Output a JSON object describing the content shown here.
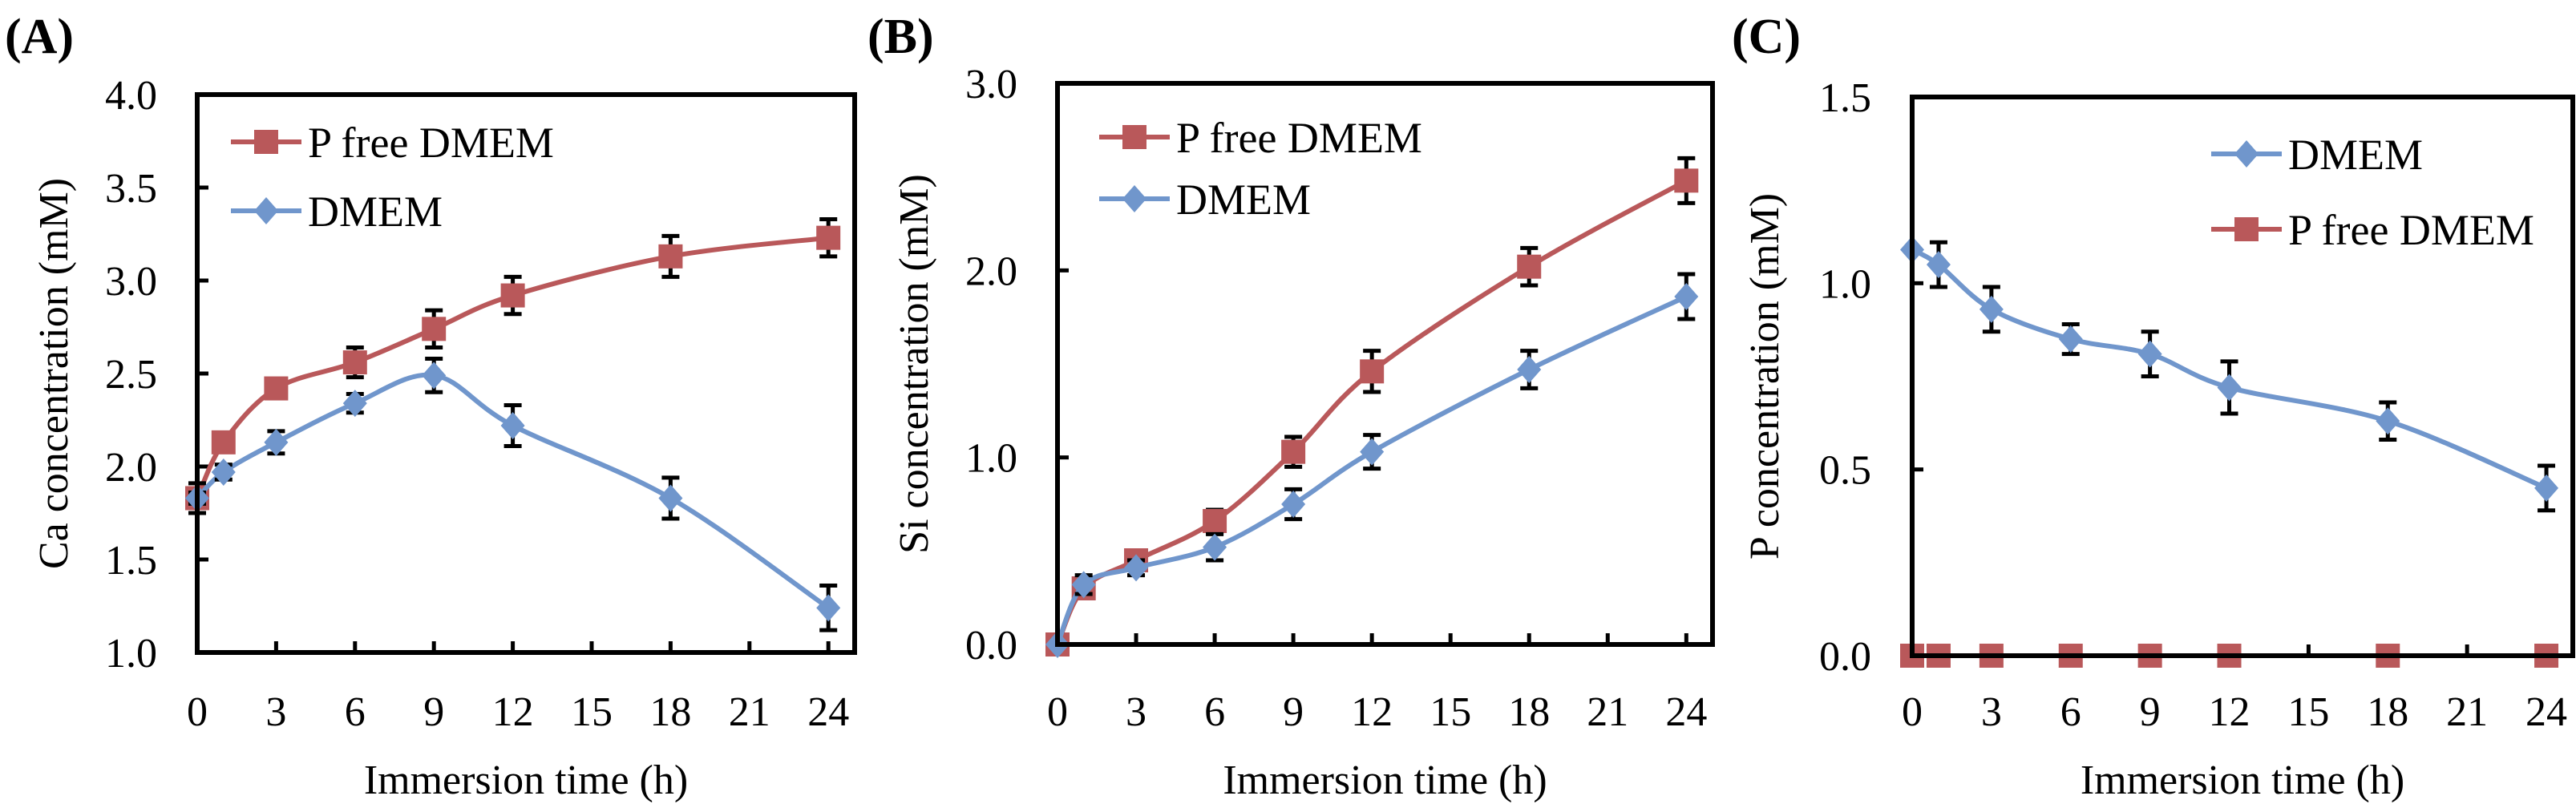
{
  "colors": {
    "p_free": "#b9585a",
    "dmem": "#7096cc",
    "axis": "#000000",
    "error": "#000000"
  },
  "chart_data": [
    {
      "type": "line",
      "panel": "(A)",
      "xlabel": "Immersion time (h)",
      "ylabel": "Ca concentration (mM)",
      "xlim": [
        0,
        25
      ],
      "ylim": [
        1.0,
        4.0
      ],
      "xticks": [
        0,
        3,
        6,
        9,
        12,
        15,
        18,
        21,
        24
      ],
      "yticks": [
        "1.0",
        "1.5",
        "2.0",
        "2.5",
        "3.0",
        "3.5",
        "4.0"
      ],
      "legend_order": [
        "P free DMEM",
        "DMEM"
      ],
      "x": [
        0,
        1,
        3,
        6,
        9,
        12,
        18,
        24
      ],
      "series": [
        {
          "name": "P free DMEM",
          "key": "p_free",
          "marker": "square",
          "values": [
            1.83,
            2.13,
            2.42,
            2.56,
            2.74,
            2.92,
            3.13,
            3.23
          ],
          "errors": [
            0.08,
            0.05,
            0.05,
            0.08,
            0.1,
            0.1,
            0.11,
            0.1
          ]
        },
        {
          "name": "DMEM",
          "key": "dmem",
          "marker": "diamond",
          "values": [
            1.83,
            1.97,
            2.13,
            2.34,
            2.49,
            2.22,
            1.83,
            1.24
          ],
          "errors": [
            0.03,
            0.04,
            0.06,
            0.05,
            0.09,
            0.11,
            0.11,
            0.12
          ]
        }
      ]
    },
    {
      "type": "line",
      "panel": "(B)",
      "xlabel": "Immersion time (h)",
      "ylabel": "Si concentration (mM)",
      "xlim": [
        0,
        25
      ],
      "ylim": [
        0.0,
        3.0
      ],
      "xticks": [
        0,
        3,
        6,
        9,
        12,
        15,
        18,
        21,
        24
      ],
      "yticks": [
        "0.0",
        "1.0",
        "2.0",
        "3.0"
      ],
      "legend_order": [
        "P free DMEM",
        "DMEM"
      ],
      "x": [
        0,
        1,
        3,
        6,
        9,
        12,
        18,
        24
      ],
      "series": [
        {
          "name": "P free DMEM",
          "key": "p_free",
          "marker": "square",
          "values": [
            0.0,
            0.3,
            0.45,
            0.66,
            1.03,
            1.46,
            2.02,
            2.48
          ],
          "errors": [
            0.0,
            0.05,
            0.04,
            0.06,
            0.08,
            0.11,
            0.1,
            0.12
          ]
        },
        {
          "name": "DMEM",
          "key": "dmem",
          "marker": "diamond",
          "values": [
            0.0,
            0.32,
            0.41,
            0.52,
            0.75,
            1.03,
            1.47,
            1.86
          ],
          "errors": [
            0.0,
            0.05,
            0.04,
            0.07,
            0.08,
            0.09,
            0.1,
            0.12
          ]
        }
      ]
    },
    {
      "type": "line",
      "panel": "(C)",
      "xlabel": "Immersion time (h)",
      "ylabel": "P concentration (mM)",
      "xlim": [
        0,
        25
      ],
      "ylim": [
        0.0,
        1.5
      ],
      "xticks": [
        0,
        3,
        6,
        9,
        12,
        15,
        18,
        21,
        24
      ],
      "yticks": [
        "0.0",
        "0.5",
        "1.0",
        "1.5"
      ],
      "legend_order": [
        "DMEM",
        "P free DMEM"
      ],
      "x": [
        0,
        1,
        3,
        6,
        9,
        12,
        18,
        24
      ],
      "series": [
        {
          "name": "DMEM",
          "key": "dmem",
          "marker": "diamond",
          "values": [
            1.09,
            1.05,
            0.93,
            0.85,
            0.81,
            0.72,
            0.63,
            0.45
          ],
          "errors": [
            0.0,
            0.06,
            0.06,
            0.04,
            0.06,
            0.07,
            0.05,
            0.06
          ]
        },
        {
          "name": "P free DMEM",
          "key": "p_free",
          "marker": "square",
          "values": [
            0,
            0,
            0,
            0,
            0,
            0,
            0,
            0
          ],
          "errors": [
            0,
            0,
            0,
            0,
            0,
            0,
            0,
            0
          ]
        }
      ]
    }
  ]
}
